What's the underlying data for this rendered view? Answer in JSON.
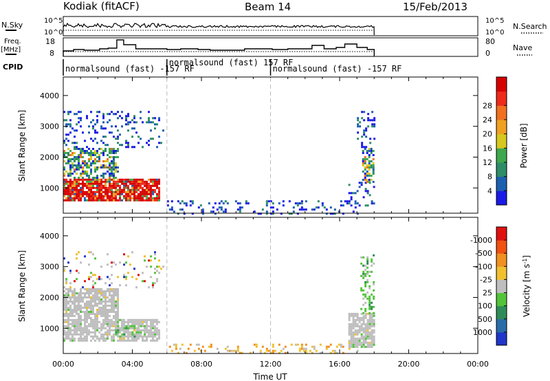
{
  "header": {
    "station": "Kodiak (fitACF)",
    "beam": "Beam 14",
    "date": "15/Feb/2013"
  },
  "side_labels": {
    "nsky": "N.Sky",
    "freq_line1": "Freq.",
    "freq_line2": "[MHz]",
    "cpid": "CPID",
    "nsearch": "N.Search",
    "nave": "Nave"
  },
  "tick_labels": {
    "noise_left_top": "10^5",
    "noise_left_bottom": "10^0",
    "noise_right_top": "10^5",
    "noise_right_bottom": "10^0",
    "freq_left_top": "18",
    "freq_left_bottom": "8",
    "freq_right_top": "80",
    "freq_right_bottom": "0"
  },
  "cpid_segments": [
    {
      "label": "normalsound (fast) -157 RF",
      "start_hour": 0.0
    },
    {
      "label": "normalsound (fast) 157 RF",
      "start_hour": 6.0
    },
    {
      "label": "normalsound (fast) -157 RF",
      "start_hour": 12.0
    }
  ],
  "chart_data": [
    {
      "type": "heatmap",
      "panel": "power",
      "ylabel": "Slant Range [km]",
      "xlim": [
        0,
        24
      ],
      "ylim": [
        180,
        4600
      ],
      "yticks": [
        1000,
        2000,
        3000,
        4000
      ],
      "colorbar": {
        "label": "Power [dB]",
        "ticks": [
          "4",
          "8",
          "12",
          "16",
          "20",
          "24",
          "28"
        ],
        "colors": [
          "#1a1ae6",
          "#1c5fb0",
          "#2e8c66",
          "#3fa84c",
          "#d6c81e",
          "#f0a020",
          "#f07020",
          "#ee2a1a",
          "#d60000"
        ]
      },
      "regions": [
        {
          "x0": 0.0,
          "x1": 5.5,
          "y0": 600,
          "y1": 1300,
          "level": "high"
        },
        {
          "x0": 0.0,
          "x1": 3.2,
          "y0": 1300,
          "y1": 2300,
          "level": "mid"
        },
        {
          "x0": 0.0,
          "x1": 5.8,
          "y0": 2300,
          "y1": 3500,
          "level": "low"
        },
        {
          "x0": 6.0,
          "x1": 17.0,
          "y0": 180,
          "y1": 600,
          "level": "low"
        },
        {
          "x0": 16.5,
          "x1": 18.0,
          "y0": 400,
          "y1": 1200,
          "level": "low"
        },
        {
          "x0": 17.3,
          "x1": 18.0,
          "y0": 1200,
          "y1": 2300,
          "level": "mid"
        },
        {
          "x0": 17.0,
          "x1": 18.0,
          "y0": 2300,
          "y1": 3500,
          "level": "low"
        }
      ]
    },
    {
      "type": "heatmap",
      "panel": "velocity",
      "ylabel": "Slant Range [km]",
      "xlabel": "Time UT",
      "xlim": [
        0,
        24
      ],
      "ylim": [
        180,
        4600
      ],
      "xticks": [
        "00:00",
        "04:00",
        "08:00",
        "12:00",
        "16:00",
        "20:00",
        "00:00"
      ],
      "yticks": [
        1000,
        2000,
        3000,
        4000
      ],
      "colorbar": {
        "label": "Velocity [m s^-1]",
        "ticks": [
          "1000",
          "500",
          "100",
          "25",
          "-25",
          "-100",
          "-500",
          "-1000"
        ],
        "colors": [
          "#2036c8",
          "#2a6ca8",
          "#2f8c58",
          "#52c43a",
          "#bebebe",
          "#f0c030",
          "#f09020",
          "#f05010",
          "#e01010"
        ]
      },
      "regions": [
        {
          "x0": 0.0,
          "x1": 5.5,
          "y0": 600,
          "y1": 1300,
          "level": "ground"
        },
        {
          "x0": 0.0,
          "x1": 3.2,
          "y0": 1300,
          "y1": 2300,
          "level": "ground"
        },
        {
          "x0": 3.0,
          "x1": 4.5,
          "y0": 700,
          "y1": 1100,
          "level": "green"
        },
        {
          "x0": 0.0,
          "x1": 5.8,
          "y0": 2300,
          "y1": 3500,
          "level": "sparse"
        },
        {
          "x0": 6.0,
          "x1": 17.0,
          "y0": 180,
          "y1": 500,
          "level": "orange"
        },
        {
          "x0": 16.5,
          "x1": 18.0,
          "y0": 400,
          "y1": 1500,
          "level": "ground"
        },
        {
          "x0": 17.2,
          "x1": 18.0,
          "y0": 1500,
          "y1": 3400,
          "level": "green"
        }
      ]
    }
  ]
}
